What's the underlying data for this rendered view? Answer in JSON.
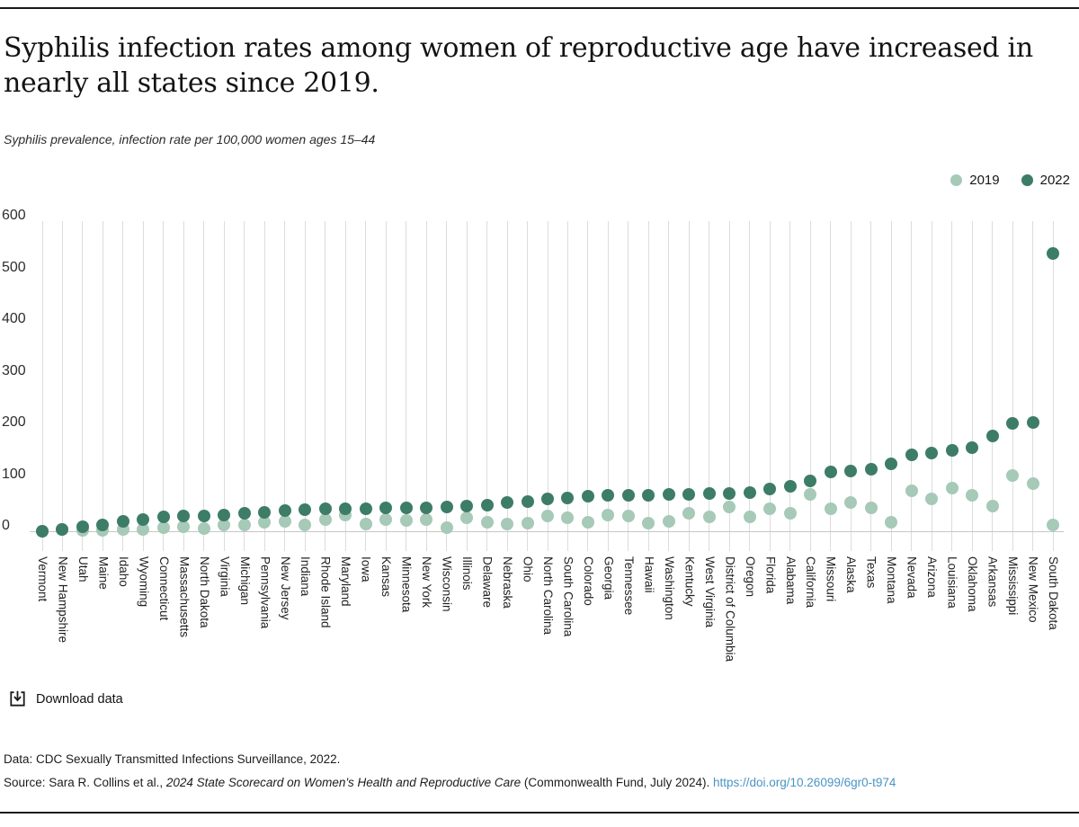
{
  "page": {
    "title_lines": [
      "Syphilis infection rates among women of reproductive age have increased in",
      "nearly all states since 2019."
    ],
    "subtitle": "Syphilis prevalence, infection rate per 100,000 women ages 15–44"
  },
  "download": {
    "label": "Download data"
  },
  "footer": {
    "data_note": "Data: CDC Sexually Transmitted Infections Surveillance, 2022.",
    "source_prefix": "Source: Sara R. Collins et al., ",
    "source_italic": "2024 State Scorecard on Women's Health and Reproductive Care",
    "source_suffix": " (Commonwealth Fund, July 2024). ",
    "link": "https://doi.org/10.26099/6gr0-t974"
  },
  "colors": {
    "series_2019": "#a6c9b8",
    "series_2022": "#3d7d67",
    "link": "#4a94c4",
    "gridline": "#dcdcdc",
    "rule": "#191919"
  },
  "chart_data": {
    "type": "scatter",
    "title": "Syphilis infection rates among women of reproductive age have increased in nearly all states since 2019.",
    "subtitle": "Syphilis prevalence, infection rate per 100,000 women ages 15–44",
    "xlabel": "",
    "ylabel": "Infection rate per 100,000 women ages 15–44",
    "ylim": [
      0,
      600
    ],
    "yticks": [
      0,
      100,
      200,
      300,
      400,
      500,
      600
    ],
    "grid": "vertical-per-category",
    "legend_position": "top-right",
    "x_label_rotation": "vertical",
    "categories": [
      "Vermont",
      "New Hampshire",
      "Utah",
      "Maine",
      "Idaho",
      "Wyoming",
      "Connecticut",
      "Massachusetts",
      "North Dakota",
      "Virginia",
      "Michigan",
      "Pennsylvania",
      "New Jersey",
      "Indiana",
      "Rhode Island",
      "Maryland",
      "Iowa",
      "Kansas",
      "Minnesota",
      "New York",
      "Wisconsin",
      "Illinois",
      "Delaware",
      "Nebraska",
      "Ohio",
      "North Carolina",
      "South Carolina",
      "Colorado",
      "Georgia",
      "Tennessee",
      "Hawaii",
      "Washington",
      "Kentucky",
      "West Virginia",
      "District of Columbia",
      "Oregon",
      "Florida",
      "Alabama",
      "California",
      "Missouri",
      "Alaska",
      "Texas",
      "Montana",
      "Nevada",
      "Arizona",
      "Louisiana",
      "Oklahoma",
      "Arkansas",
      "Mississippi",
      "New Mexico",
      "South Dakota"
    ],
    "series": [
      {
        "name": "2019",
        "color": "#a6c9b8",
        "values": [
          0,
          3,
          1,
          1,
          4,
          3,
          7,
          9,
          6,
          13,
          13,
          17,
          20,
          13,
          23,
          31,
          14,
          22,
          21,
          22,
          7,
          26,
          17,
          14,
          16,
          29,
          26,
          18,
          31,
          29,
          16,
          20,
          35,
          28,
          47,
          28,
          43,
          35,
          72,
          43,
          56,
          45,
          17,
          78,
          63,
          83,
          70,
          49,
          108,
          92,
          13
        ]
      },
      {
        "name": "2022",
        "color": "#3d7d67",
        "values": [
          0,
          4,
          9,
          13,
          20,
          23,
          27,
          29,
          30,
          32,
          35,
          37,
          40,
          42,
          43,
          44,
          44,
          45,
          46,
          46,
          47,
          48,
          50,
          56,
          57,
          62,
          65,
          67,
          69,
          70,
          70,
          71,
          72,
          73,
          73,
          74,
          81,
          87,
          98,
          114,
          117,
          120,
          131,
          147,
          151,
          157,
          162,
          185,
          209,
          210,
          538
        ]
      }
    ]
  }
}
